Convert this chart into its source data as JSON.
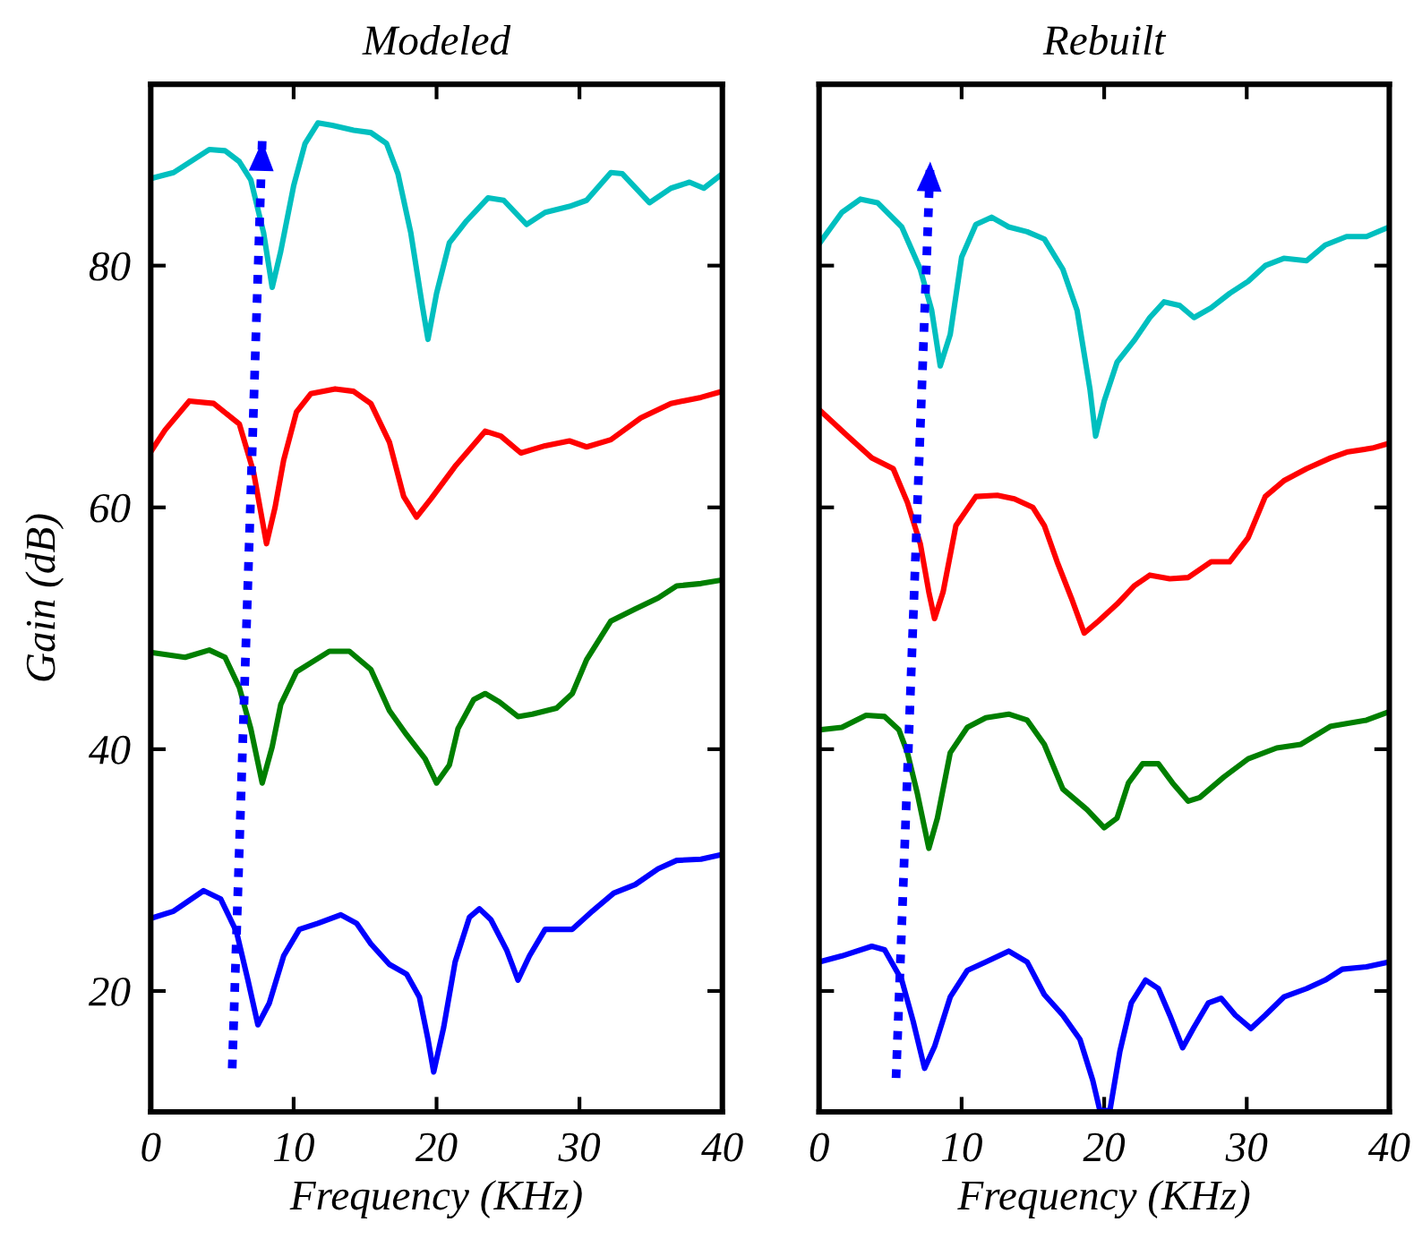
{
  "chart_data": [
    {
      "type": "line",
      "title": "Modeled",
      "xlabel": "Frequency (KHz)",
      "ylabel": "Gain (dB)",
      "xlim": [
        0,
        40
      ],
      "ylim": [
        10,
        95
      ],
      "xticks": [
        0,
        10,
        20,
        30,
        40
      ],
      "yticks": [
        20,
        40,
        60,
        80
      ],
      "grid": false,
      "legend": false,
      "marker": "none",
      "line_style": "solid",
      "series": [
        {
          "color": "#00bfbf",
          "x": [
            0,
            1.6,
            4.1,
            5.2,
            6.2,
            7.0,
            7.9,
            8.5,
            9.1,
            10.0,
            10.8,
            11.7,
            12.7,
            14.2,
            15.4,
            16.5,
            17.3,
            18.2,
            19.0,
            19.4,
            20.0,
            20.9,
            22.1,
            23.6,
            24.7,
            26.3,
            27.6,
            29.3,
            30.5,
            32.2,
            33.0,
            34.9,
            36.4,
            37.7,
            38.7,
            40
          ],
          "values": [
            87.2,
            87.7,
            89.6,
            89.5,
            88.6,
            87.1,
            82.7,
            78.2,
            81.2,
            86.6,
            90.1,
            91.8,
            91.6,
            91.2,
            91.0,
            90.1,
            87.6,
            82.7,
            76.7,
            73.9,
            77.7,
            81.9,
            83.7,
            85.6,
            85.4,
            83.4,
            84.4,
            84.9,
            85.4,
            87.7,
            87.6,
            85.2,
            86.4,
            86.9,
            86.4,
            87.6
          ]
        },
        {
          "color": "#ff0000",
          "x": [
            0,
            1.0,
            2.7,
            4.4,
            6.2,
            7.2,
            8.1,
            8.7,
            9.3,
            10.2,
            11.2,
            12.9,
            14.2,
            15.4,
            16.7,
            17.7,
            18.6,
            19.6,
            21.3,
            23.4,
            24.5,
            25.9,
            27.6,
            29.3,
            30.5,
            32.2,
            34.3,
            36.4,
            38.5,
            40
          ],
          "values": [
            64.6,
            66.4,
            68.8,
            68.6,
            66.9,
            62.9,
            57.0,
            60.0,
            63.9,
            67.9,
            69.4,
            69.8,
            69.6,
            68.6,
            65.4,
            60.9,
            59.2,
            60.7,
            63.4,
            66.3,
            65.9,
            64.5,
            65.1,
            65.5,
            65.0,
            65.6,
            67.4,
            68.6,
            69.1,
            69.6
          ]
        },
        {
          "color": "#007f00",
          "x": [
            0,
            2.4,
            4.1,
            5.2,
            6.2,
            7.0,
            7.8,
            8.5,
            9.1,
            10.2,
            12.5,
            13.9,
            15.4,
            16.7,
            17.9,
            19.2,
            20.0,
            20.9,
            21.5,
            22.6,
            23.4,
            24.4,
            25.7,
            26.7,
            28.4,
            29.5,
            30.5,
            32.2,
            33.9,
            35.5,
            36.8,
            38.5,
            40
          ],
          "values": [
            48.0,
            47.6,
            48.2,
            47.6,
            45.1,
            41.7,
            37.2,
            40.2,
            43.7,
            46.4,
            48.1,
            48.1,
            46.6,
            43.2,
            41.2,
            39.2,
            37.2,
            38.7,
            41.7,
            44.1,
            44.6,
            43.9,
            42.7,
            42.9,
            43.4,
            44.6,
            47.4,
            50.6,
            51.6,
            52.5,
            53.5,
            53.7,
            54.0
          ]
        },
        {
          "color": "#0000ff",
          "x": [
            0,
            1.6,
            3.7,
            4.9,
            6.0,
            6.8,
            7.5,
            8.3,
            9.3,
            10.4,
            11.7,
            13.3,
            14.4,
            15.4,
            16.7,
            17.9,
            18.8,
            19.4,
            19.8,
            20.5,
            21.3,
            22.3,
            23.0,
            23.8,
            24.9,
            25.7,
            26.5,
            27.6,
            29.5,
            30.9,
            32.4,
            33.9,
            35.5,
            36.8,
            38.5,
            40
          ],
          "values": [
            26.0,
            26.6,
            28.3,
            27.6,
            24.9,
            20.9,
            17.2,
            19.0,
            22.9,
            25.1,
            25.6,
            26.3,
            25.6,
            23.9,
            22.2,
            21.4,
            19.5,
            16.0,
            13.3,
            17.0,
            22.4,
            26.1,
            26.8,
            25.9,
            23.4,
            20.9,
            22.9,
            25.1,
            25.1,
            26.6,
            28.1,
            28.8,
            30.1,
            30.8,
            30.9,
            31.3
          ]
        },
        {
          "color": "#0000ff",
          "line_style": "dotted",
          "x": [
            5.7,
            7.8
          ],
          "values": [
            13.6,
            90.3
          ]
        }
      ]
    },
    {
      "type": "line",
      "title": "Rebuilt",
      "xlabel": "Frequency (KHz)",
      "xlim": [
        0,
        40
      ],
      "ylim": [
        10,
        95
      ],
      "xticks": [
        0,
        10,
        20,
        30,
        40
      ],
      "yticks": [
        20,
        40,
        60,
        80
      ],
      "tick_labels": "x",
      "grid": false,
      "legend": false,
      "marker": "none",
      "line_style": "solid",
      "series": [
        {
          "color": "#00bfbf",
          "x": [
            0,
            1.6,
            2.9,
            4.1,
            5.8,
            7.1,
            7.9,
            8.5,
            9.2,
            10.0,
            11.0,
            12.1,
            13.3,
            14.6,
            15.8,
            17.1,
            18.1,
            19.0,
            19.4,
            20.0,
            20.9,
            22.1,
            23.2,
            24.2,
            25.3,
            26.3,
            27.5,
            28.8,
            30.1,
            31.3,
            32.6,
            34.2,
            35.5,
            37.0,
            38.4,
            40
          ],
          "values": [
            81.8,
            84.4,
            85.5,
            85.2,
            83.2,
            79.7,
            76.3,
            71.7,
            74.3,
            80.7,
            83.4,
            84.0,
            83.2,
            82.8,
            82.2,
            79.7,
            76.3,
            69.8,
            65.9,
            68.8,
            72.0,
            73.8,
            75.7,
            77.0,
            76.7,
            75.7,
            76.5,
            77.7,
            78.7,
            80.0,
            80.6,
            80.4,
            81.7,
            82.4,
            82.4,
            83.2
          ]
        },
        {
          "color": "#ff0000",
          "x": [
            0,
            2.0,
            3.7,
            5.2,
            6.2,
            7.1,
            7.7,
            8.1,
            8.7,
            9.6,
            11.0,
            12.5,
            13.7,
            15.0,
            15.8,
            16.7,
            17.7,
            18.6,
            19.6,
            20.9,
            22.1,
            23.2,
            24.6,
            25.9,
            27.5,
            28.8,
            30.1,
            31.3,
            32.6,
            34.2,
            35.9,
            37.1,
            38.8,
            40
          ],
          "values": [
            68.1,
            65.9,
            64.1,
            63.2,
            60.4,
            57.0,
            53.0,
            50.8,
            53.0,
            58.5,
            60.9,
            61.0,
            60.7,
            60.0,
            58.5,
            55.5,
            52.5,
            49.6,
            50.6,
            52.0,
            53.5,
            54.4,
            54.1,
            54.2,
            55.5,
            55.5,
            57.5,
            60.9,
            62.2,
            63.2,
            64.1,
            64.6,
            64.9,
            65.3
          ]
        },
        {
          "color": "#007f00",
          "x": [
            0,
            1.6,
            3.3,
            4.6,
            5.6,
            6.2,
            6.9,
            7.7,
            8.3,
            9.2,
            10.4,
            11.7,
            13.3,
            14.6,
            15.8,
            17.1,
            18.8,
            20.0,
            20.9,
            21.7,
            22.7,
            23.8,
            24.8,
            25.9,
            26.7,
            28.4,
            30.1,
            32.1,
            33.8,
            35.9,
            38.4,
            40
          ],
          "values": [
            41.6,
            41.8,
            42.8,
            42.7,
            41.6,
            39.7,
            36.3,
            31.8,
            34.3,
            39.7,
            41.8,
            42.6,
            42.9,
            42.4,
            40.4,
            36.7,
            35.0,
            33.5,
            34.3,
            37.2,
            38.8,
            38.8,
            37.2,
            35.7,
            36.0,
            37.7,
            39.2,
            40.1,
            40.4,
            41.9,
            42.4,
            43.1
          ]
        },
        {
          "color": "#0000ff",
          "x": [
            0,
            1.6,
            3.7,
            4.6,
            5.8,
            6.6,
            7.4,
            8.1,
            9.2,
            10.4,
            11.7,
            13.3,
            14.6,
            15.8,
            17.1,
            18.3,
            19.2,
            19.7,
            20.4,
            21.1,
            21.9,
            22.9,
            23.8,
            24.6,
            25.5,
            26.3,
            27.3,
            28.2,
            29.2,
            30.3,
            31.3,
            32.6,
            34.2,
            35.5,
            36.7,
            38.4,
            40
          ],
          "values": [
            22.4,
            22.9,
            23.7,
            23.4,
            20.9,
            17.5,
            13.6,
            15.4,
            19.5,
            21.7,
            22.4,
            23.3,
            22.4,
            19.7,
            18.0,
            16.0,
            12.6,
            10.1,
            10.1,
            15.0,
            19.0,
            20.9,
            20.2,
            18.0,
            15.3,
            17.0,
            19.0,
            19.4,
            18.0,
            16.9,
            18.0,
            19.5,
            20.2,
            20.9,
            21.8,
            22.0,
            22.4
          ]
        },
        {
          "color": "#0000ff",
          "line_style": "dotted",
          "x": [
            5.4,
            7.8
          ],
          "values": [
            12.8,
            88.6
          ]
        }
      ]
    }
  ]
}
